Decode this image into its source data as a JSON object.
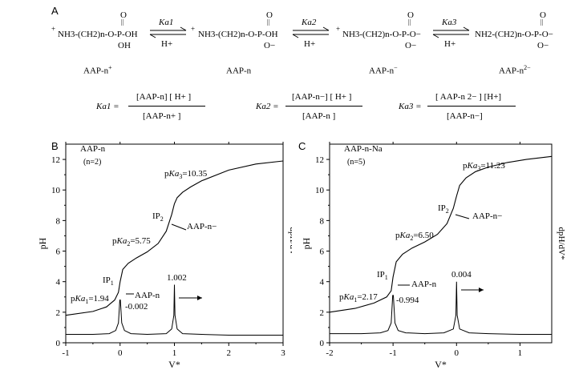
{
  "panel_a": {
    "letter": "A",
    "species": [
      {
        "formula": "NH3-(CH2)n-O-P-OH",
        "charge_prefix": "+",
        "substituents": [
          "O",
          "||",
          "OH"
        ],
        "name": "AAP-n",
        "name_sup": "+"
      },
      {
        "formula": "NH3-(CH2)n-O-P-OH",
        "charge_prefix": "+",
        "substituents": [
          "O",
          "||",
          "O−"
        ],
        "name": "AAP-n",
        "name_sup": ""
      },
      {
        "formula": "NH3-(CH2)n-O-P-O−",
        "charge_prefix": "+",
        "substituents": [
          "O",
          "||",
          "O−"
        ],
        "name": "AAP-n",
        "name_sup": "−"
      },
      {
        "formula": "NH2-(CH2)n-O-P-O−",
        "charge_prefix": "",
        "substituents": [
          "O",
          "||",
          "O−"
        ],
        "name": "AAP-n",
        "name_sup": "2−"
      }
    ],
    "equilibria": [
      {
        "k": "Ka1",
        "h": "H+"
      },
      {
        "k": "Ka2",
        "h": "H+"
      },
      {
        "k": "Ka3",
        "h": "H+"
      }
    ],
    "equations": [
      {
        "lhs": "Ka1 =",
        "numerator": "[AAP-n] [ H+ ]",
        "denominator": "[AAP-n+ ]"
      },
      {
        "lhs": "Ka2 =",
        "numerator": "[AAP-n−] [ H+ ]",
        "denominator": "[AAP-n ]"
      },
      {
        "lhs": "Ka3 =",
        "numerator": "[ AAP-n 2− ] [H+]",
        "denominator": "[AAP-n−]"
      }
    ]
  },
  "chart_data": [
    {
      "panel": "B",
      "type": "line",
      "title": "AAP-n",
      "subtitle": "(n=2)",
      "xlabel": "V*",
      "ylabel": "pH",
      "y2label": "dpH/dV*",
      "xlim": [
        -1,
        3
      ],
      "ylim": [
        0,
        13
      ],
      "xticks": [
        "-1",
        "0",
        "1",
        "2",
        "3"
      ],
      "yticks": [
        "0",
        "2",
        "4",
        "6",
        "8",
        "10",
        "12"
      ],
      "grid": false,
      "series": [
        {
          "name": "pH",
          "x": [
            -1,
            -0.5,
            -0.25,
            -0.1,
            -0.03,
            0,
            0.05,
            0.15,
            0.3,
            0.5,
            0.7,
            0.85,
            0.95,
            1.0,
            1.05,
            1.15,
            1.3,
            1.5,
            2.0,
            2.5,
            3.0
          ],
          "y": [
            1.8,
            2.05,
            2.35,
            2.8,
            3.3,
            4.0,
            4.8,
            5.2,
            5.55,
            5.95,
            6.5,
            7.3,
            8.4,
            9.1,
            9.5,
            9.85,
            10.2,
            10.6,
            11.3,
            11.7,
            11.9
          ]
        },
        {
          "name": "dpH/dV*",
          "x": [
            -1,
            -0.5,
            -0.2,
            -0.08,
            -0.03,
            -0.005,
            0.005,
            0.03,
            0.08,
            0.2,
            0.5,
            0.85,
            0.95,
            0.99,
            1.0,
            1.01,
            1.05,
            1.15,
            1.5,
            2.0,
            3.0
          ],
          "y": [
            0.55,
            0.55,
            0.6,
            0.8,
            1.3,
            2.8,
            2.8,
            1.3,
            0.8,
            0.6,
            0.55,
            0.6,
            0.9,
            1.8,
            3.8,
            1.8,
            0.9,
            0.6,
            0.55,
            0.5,
            0.5
          ]
        }
      ],
      "annotations": [
        {
          "text": "pKa3=10.35"
        },
        {
          "text": "IP2"
        },
        {
          "text": "AAP-n−"
        },
        {
          "text": "pKa2=5.75"
        },
        {
          "text": "IP1"
        },
        {
          "text": "AAP-n"
        },
        {
          "text": "1.002"
        },
        {
          "text": "-0.002"
        },
        {
          "text": "pKa1=1.94"
        }
      ]
    },
    {
      "panel": "C",
      "type": "line",
      "title": "AAP-n-Na",
      "subtitle": "(n=5)",
      "xlabel": "V*",
      "ylabel": "pH",
      "y2label": "dpH/dV*",
      "xlim": [
        -2,
        1.5
      ],
      "ylim": [
        0,
        13
      ],
      "xticks": [
        "-2",
        "-1",
        "0",
        "1"
      ],
      "yticks": [
        "0",
        "2",
        "4",
        "6",
        "8",
        "10",
        "12"
      ],
      "grid": false,
      "series": [
        {
          "name": "pH",
          "x": [
            -2,
            -1.6,
            -1.3,
            -1.1,
            -1.03,
            -1.0,
            -0.95,
            -0.85,
            -0.7,
            -0.5,
            -0.3,
            -0.15,
            -0.05,
            0.0,
            0.05,
            0.15,
            0.3,
            0.5,
            0.8,
            1.1,
            1.5
          ],
          "y": [
            2.0,
            2.25,
            2.6,
            3.0,
            3.4,
            4.3,
            5.3,
            5.8,
            6.2,
            6.6,
            7.1,
            7.8,
            8.8,
            9.6,
            10.3,
            10.8,
            11.2,
            11.5,
            11.8,
            12.0,
            12.2
          ]
        },
        {
          "name": "dpH/dV*",
          "x": [
            -2,
            -1.5,
            -1.2,
            -1.08,
            -1.03,
            -1.005,
            -0.995,
            -0.97,
            -0.92,
            -0.8,
            -0.5,
            -0.2,
            -0.05,
            -0.01,
            0.0,
            0.01,
            0.05,
            0.2,
            0.5,
            1.0,
            1.5
          ],
          "y": [
            0.6,
            0.6,
            0.65,
            0.8,
            1.3,
            3.1,
            3.1,
            1.3,
            0.8,
            0.65,
            0.6,
            0.65,
            0.9,
            1.8,
            4.0,
            1.8,
            0.9,
            0.65,
            0.6,
            0.55,
            0.55
          ]
        }
      ],
      "annotations": [
        {
          "text": "pKa3=11.23"
        },
        {
          "text": "IP2"
        },
        {
          "text": "AAP-n−"
        },
        {
          "text": "pKa2=6.50"
        },
        {
          "text": "IP1"
        },
        {
          "text": "AAP-n"
        },
        {
          "text": "0.004"
        },
        {
          "text": "-0.994"
        },
        {
          "text": "pKa1=2.17"
        }
      ]
    }
  ]
}
